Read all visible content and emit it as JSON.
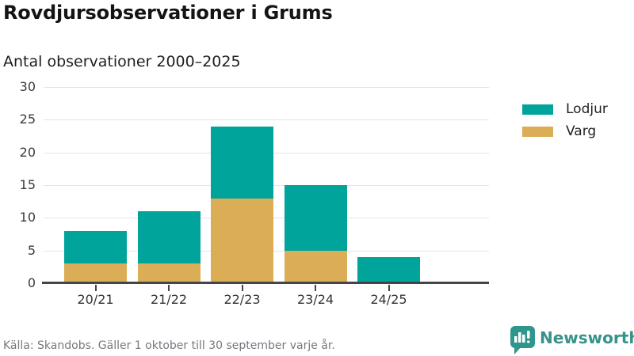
{
  "header": {
    "title": "Rovdjursobservationer i Grums",
    "subtitle": "Antal observationer 2000–2025"
  },
  "chart_data": {
    "type": "bar",
    "stacked": true,
    "title": "Rovdjursobservationer i Grums",
    "subtitle": "Antal observationer 2000–2025",
    "categories": [
      "20/21",
      "21/22",
      "22/23",
      "23/24",
      "24/25"
    ],
    "series": [
      {
        "name": "Lodjur",
        "color": "#01A49B",
        "values": [
          5,
          8,
          11,
          10,
          4
        ]
      },
      {
        "name": "Varg",
        "color": "#DBAD57",
        "values": [
          3,
          3,
          13,
          5,
          0
        ]
      }
    ],
    "stack_order_bottom_to_top": [
      "Varg",
      "Lodjur"
    ],
    "totals": [
      8,
      11,
      24,
      15,
      4
    ],
    "xlabel": "",
    "ylabel": "",
    "ylim": [
      0,
      30
    ],
    "yticks": [
      0,
      5,
      10,
      15,
      20,
      25,
      30
    ],
    "grid": true,
    "legend_position": "right"
  },
  "footer": {
    "source": "Källa: Skandobs. Gäller 1 oktober till 30 september varje år.",
    "brand": "Newsworthy",
    "brand_color": "#37928B"
  },
  "colors": {
    "lodjur": "#01A49B",
    "varg": "#DBAD57",
    "gridline": "#E4E4E4",
    "axis": "#454545",
    "title_text": "#141414",
    "muted_text": "#75797E"
  }
}
